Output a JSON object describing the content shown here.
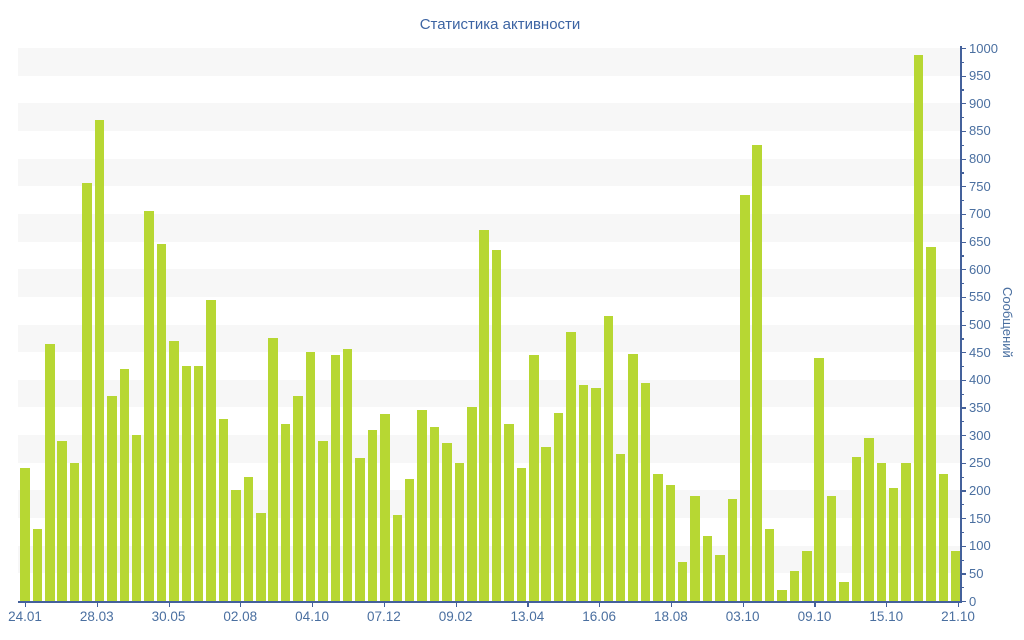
{
  "title": "Статистика активности",
  "colors": {
    "bar": "#b7d733",
    "axis": "#44619b",
    "label": "#4a6fa0",
    "title_text": "#3c64a3",
    "stripe": "#f7f7f7",
    "background": "#ffffff"
  },
  "chart_data": {
    "type": "bar",
    "title": "Статистика активности",
    "xlabel": "",
    "ylabel": "Сообщений",
    "ylim": [
      0,
      1000
    ],
    "ytick_step": 50,
    "ytick_minor_step": 25,
    "legend": "none",
    "grid": "alternating horizontal 50-unit stripe bands",
    "x_tick_labels": [
      "24.01",
      "28.03",
      "30.05",
      "02.08",
      "04.10",
      "07.12",
      "09.02",
      "13.04",
      "16.06",
      "18.08",
      "03.10",
      "09.10",
      "15.10",
      "21.10"
    ],
    "values": [
      240,
      130,
      465,
      290,
      250,
      755,
      870,
      370,
      420,
      300,
      705,
      645,
      470,
      425,
      425,
      545,
      330,
      200,
      225,
      160,
      475,
      320,
      370,
      450,
      290,
      445,
      455,
      258,
      310,
      338,
      155,
      220,
      345,
      315,
      285,
      250,
      350,
      670,
      635,
      320,
      240,
      445,
      278,
      340,
      487,
      390,
      385,
      515,
      265,
      447,
      395,
      230,
      210,
      70,
      190,
      118,
      83,
      185,
      735,
      825,
      130,
      20,
      55,
      90,
      440,
      190,
      35,
      260,
      295,
      250,
      205,
      250,
      987,
      640,
      230,
      90
    ]
  }
}
